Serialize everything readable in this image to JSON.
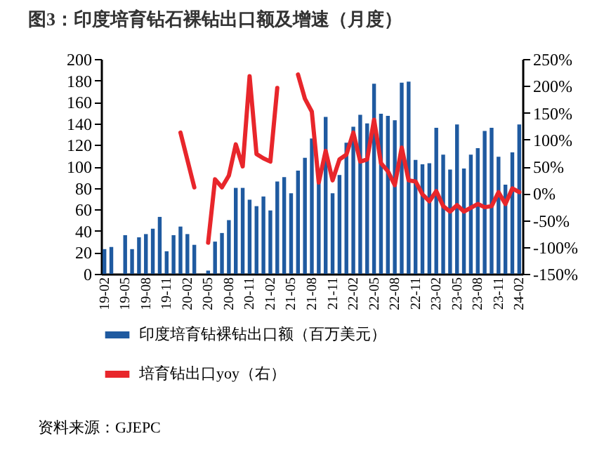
{
  "chart_data": {
    "type": "bar",
    "title": "图3：印度培育钻石裸钻出口额及增速（月度）",
    "categories": [
      "19-02",
      null,
      null,
      "19-05",
      null,
      null,
      "19-08",
      null,
      null,
      "19-11",
      null,
      null,
      "20-02",
      null,
      null,
      "20-05",
      null,
      null,
      "20-08",
      null,
      null,
      "20-11",
      null,
      null,
      "21-02",
      null,
      null,
      "21-05",
      null,
      null,
      "21-08",
      null,
      null,
      "21-11",
      null,
      null,
      "22-02",
      null,
      null,
      "22-05",
      null,
      null,
      "22-08",
      null,
      null,
      "22-11",
      null,
      null,
      "23-02",
      null,
      null,
      "23-05",
      null,
      null,
      "23-08",
      null,
      null,
      "23-11",
      null,
      null,
      "24-02"
    ],
    "series": [
      {
        "name": "印度培育钻裸钻出口额（百万美元）",
        "type": "bar",
        "color": "#1f5aa0",
        "values": [
          23,
          25,
          null,
          36,
          23,
          34,
          37,
          42,
          53,
          21,
          36,
          44,
          37,
          27,
          null,
          3,
          30,
          38,
          50,
          80,
          80,
          69,
          63,
          72,
          59,
          86,
          90,
          75,
          96,
          108,
          126,
          85,
          146,
          75,
          92,
          122,
          137,
          148,
          140,
          177,
          149,
          147,
          143,
          178,
          179,
          106,
          102,
          103,
          136,
          111,
          97,
          139,
          98,
          111,
          117,
          133,
          136,
          109,
          83,
          113,
          139
        ]
      },
      {
        "name": "培育钻出口yoy（右）",
        "type": "line",
        "axis": "y2",
        "color": "#e8262b",
        "values": [
          null,
          null,
          null,
          null,
          null,
          null,
          null,
          null,
          null,
          null,
          null,
          113,
          62,
          11,
          null,
          -92,
          26,
          11,
          33,
          91,
          50,
          218,
          73,
          65,
          59,
          196,
          null,
          null,
          221,
          176,
          152,
          20,
          79,
          24,
          63,
          72,
          113,
          59,
          63,
          137,
          56,
          41,
          15,
          85,
          24,
          22,
          -2,
          -15,
          4,
          -24,
          -34,
          -22,
          -34,
          -27,
          -20,
          -26,
          -24,
          2,
          -20,
          9,
          2
        ]
      }
    ],
    "ylim": [
      0,
      200
    ],
    "yticks": [
      0,
      20,
      40,
      60,
      80,
      100,
      120,
      140,
      160,
      180,
      200
    ],
    "y2lim": [
      -150,
      250
    ],
    "y2ticks": [
      {
        "value": -150,
        "label": "-150%"
      },
      {
        "value": -100,
        "label": "-100%"
      },
      {
        "value": -50,
        "label": "-50%"
      },
      {
        "value": 0,
        "label": "0%"
      },
      {
        "value": 50,
        "label": "50%"
      },
      {
        "value": 100,
        "label": "100%"
      },
      {
        "value": 150,
        "label": "150%"
      },
      {
        "value": 200,
        "label": "200%"
      },
      {
        "value": 250,
        "label": "250%"
      }
    ],
    "legend": "bottom",
    "annotations": [
      "资料来源：GJEPC"
    ]
  }
}
